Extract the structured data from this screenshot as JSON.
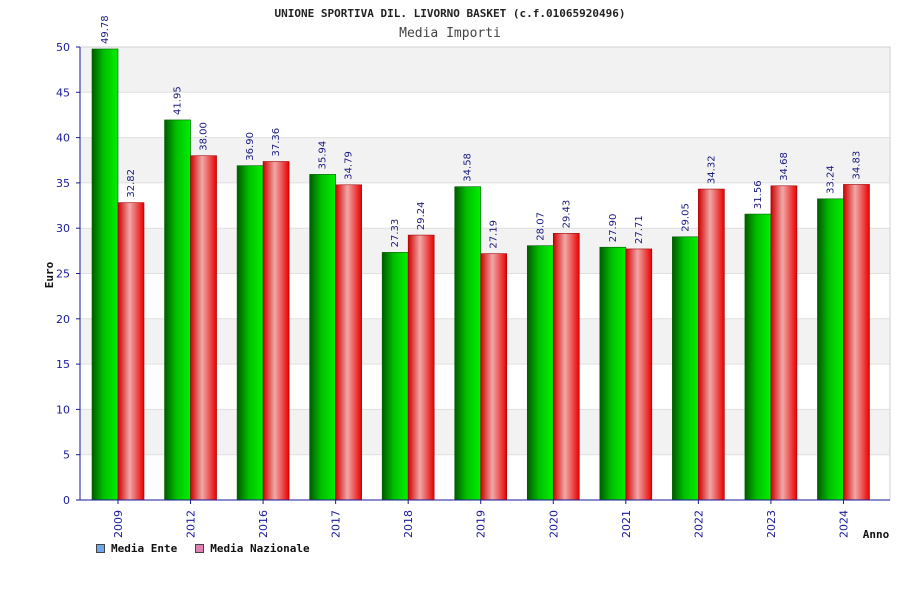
{
  "chart_data": {
    "type": "bar",
    "title": "UNIONE SPORTIVA DIL. LIVORNO BASKET (c.f.01065920496)",
    "subtitle": "Media Importi",
    "xlabel": "Anno",
    "ylabel": "Euro",
    "ylim": [
      0,
      50
    ],
    "yticks": [
      0,
      5,
      10,
      15,
      20,
      25,
      30,
      35,
      40,
      45,
      50
    ],
    "grid": true,
    "legend_position": "bottom-left",
    "categories": [
      "2009",
      "2012",
      "2016",
      "2017",
      "2018",
      "2019",
      "2020",
      "2021",
      "2022",
      "2023",
      "2024"
    ],
    "series": [
      {
        "name": "Media Ente",
        "color": "#00b000",
        "legend_color": "#6fa8e8",
        "values": [
          49.78,
          41.95,
          36.9,
          35.94,
          27.33,
          34.58,
          28.07,
          27.9,
          29.05,
          31.56,
          33.24
        ],
        "labels": [
          "49.78",
          "41.95",
          "36.90",
          "35.94",
          "27.33",
          "34.58",
          "28.07",
          "27.90",
          "29.05",
          "31.56",
          "33.24"
        ]
      },
      {
        "name": "Media Nazionale",
        "color": "#e01010",
        "legend_color": "#e080b0",
        "values": [
          32.82,
          38.0,
          37.36,
          34.79,
          29.24,
          27.19,
          29.43,
          27.71,
          34.32,
          34.68,
          34.83
        ],
        "labels": [
          "32.82",
          "38.00",
          "37.36",
          "34.79",
          "29.24",
          "27.19",
          "29.43",
          "27.71",
          "34.32",
          "34.68",
          "34.83"
        ]
      }
    ]
  }
}
